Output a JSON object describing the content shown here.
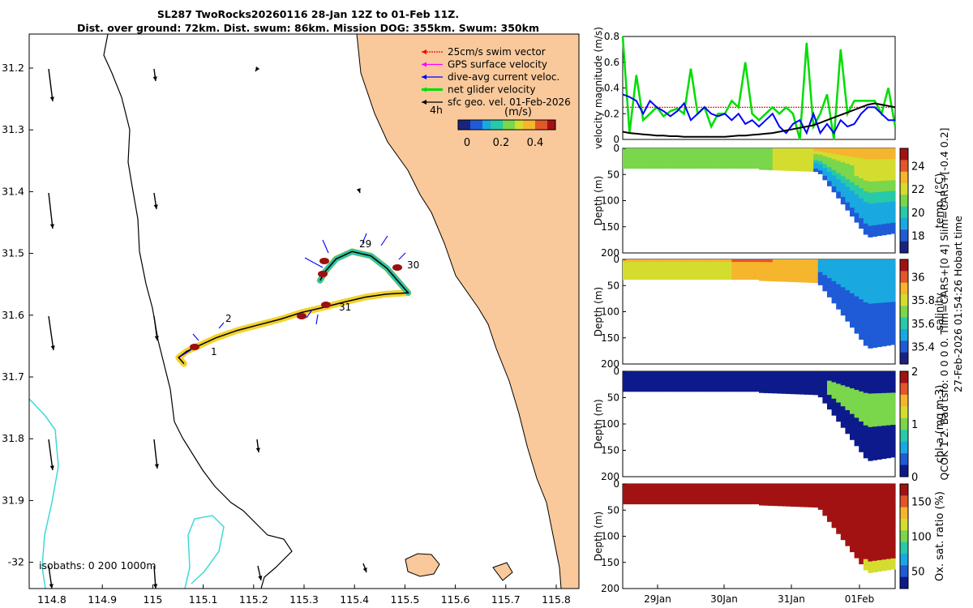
{
  "header": {
    "title_line1": "SL287 TwoRocks20260116 28-Jan 12Z to 01-Feb 11Z.",
    "title_line2": "Dist. over ground: 72km. Dist. swum: 86km. Mission DOG: 355km. Swum: 350km"
  },
  "side_text": {
    "line1": "27-Feb-2026 01:54:26 Hobart time",
    "line2": "QCOK 1  2. Bad tsfo: 0  0  0  0. Tlim=CARS+[0 4] Slim=CARS+[-0.4 0.2]"
  },
  "colors": {
    "land": "#f9c99b",
    "isobath_200": "#000000",
    "isobath_1000": "#3dd9d9",
    "track": "#000000"
  },
  "chart_data": [
    {
      "id": "map",
      "type": "scatter",
      "title": "Glider track map",
      "x_ticks": [
        "114.8",
        "114.9",
        "115",
        "115.1",
        "115.2",
        "115.3",
        "115.4",
        "115.5",
        "115.6",
        "115.7",
        "115.8"
      ],
      "y_ticks": [
        "31.2",
        "31.3",
        "31.4",
        "31.5",
        "31.6",
        "31.7",
        "31.8",
        "31.9",
        "-32"
      ],
      "xlim": [
        114.78,
        115.81
      ],
      "ylim": [
        -32.04,
        -31.14
      ],
      "legend": [
        {
          "label": "25cm/s swim vector",
          "color": "#ff0000"
        },
        {
          "label": "GPS surface velocity",
          "color": "#ff00ff"
        },
        {
          "label": "dive-avg current veloc.",
          "color": "#0000ff"
        },
        {
          "label": "net glider velocity",
          "color": "#00dd00"
        },
        {
          "label": "sfc geo. vel. 01-Feb-2026",
          "color": "#000000"
        }
      ],
      "legend_time": "4h",
      "colorbar_label": "(m/s)",
      "colorbar_ticks": [
        "0",
        "0.2",
        "0.4"
      ],
      "isobaths_label": "isobaths: 0   200  1000m",
      "day_labels": [
        "1",
        "2",
        "29",
        "30",
        "31"
      ],
      "track": [
        [
          115.07,
          -31.675
        ],
        [
          115.06,
          -31.665
        ],
        [
          115.075,
          -31.655
        ],
        [
          115.1,
          -31.645
        ],
        [
          115.13,
          -31.633
        ],
        [
          115.17,
          -31.621
        ],
        [
          115.21,
          -31.612
        ],
        [
          115.25,
          -31.603
        ],
        [
          115.29,
          -31.592
        ],
        [
          115.33,
          -31.584
        ],
        [
          115.37,
          -31.575
        ],
        [
          115.41,
          -31.567
        ],
        [
          115.45,
          -31.562
        ],
        [
          115.49,
          -31.56
        ],
        [
          115.475,
          -31.545
        ],
        [
          115.45,
          -31.52
        ],
        [
          115.42,
          -31.5
        ],
        [
          115.385,
          -31.493
        ],
        [
          115.355,
          -31.505
        ],
        [
          115.335,
          -31.525
        ],
        [
          115.325,
          -31.54
        ]
      ]
    },
    {
      "id": "velocity",
      "type": "line",
      "ylabel": "velocity magnitude (m/s)",
      "ylim": [
        0,
        0.8
      ],
      "y_ticks": [
        "0",
        "0.2",
        "0.4",
        "0.6",
        "0.8"
      ],
      "series": [
        {
          "name": "25cm/s swim vector",
          "color": "#ff0000",
          "values": [
            0.25,
            0.25,
            0.25,
            0.25,
            0.25,
            0.25,
            0.25,
            0.25,
            0.25,
            0.25,
            0.25,
            0.25,
            0.25,
            0.25,
            0.25,
            0.25,
            0.25,
            0.25,
            0.25,
            0.25,
            0.25,
            0.25,
            0.25,
            0.25,
            0.25,
            0.25,
            0.25,
            0.25,
            0.25,
            0.25,
            0.25,
            0.25,
            0.25,
            0.25,
            0.25,
            0.25,
            0.25,
            0.25,
            0.25,
            0.25,
            0.25
          ]
        },
        {
          "name": "net glider velocity",
          "color": "#00dd00",
          "values": [
            0.8,
            0.05,
            0.5,
            0.15,
            0.2,
            0.25,
            0.18,
            0.22,
            0.24,
            0.2,
            0.55,
            0.2,
            0.25,
            0.1,
            0.2,
            0.2,
            0.3,
            0.25,
            0.6,
            0.2,
            0.15,
            0.2,
            0.25,
            0.2,
            0.25,
            0.2,
            0.0,
            0.75,
            0.1,
            0.2,
            0.35,
            0.0,
            0.7,
            0.2,
            0.3,
            0.3,
            0.3,
            0.3,
            0.2,
            0.4,
            0.1
          ]
        },
        {
          "name": "dive-avg current veloc.",
          "color": "#0000ff",
          "values": [
            0.35,
            0.33,
            0.3,
            0.2,
            0.3,
            0.25,
            0.22,
            0.18,
            0.22,
            0.28,
            0.15,
            0.2,
            0.25,
            0.2,
            0.18,
            0.2,
            0.15,
            0.2,
            0.12,
            0.15,
            0.1,
            0.15,
            0.2,
            0.1,
            0.05,
            0.12,
            0.15,
            0.05,
            0.2,
            0.05,
            0.12,
            0.05,
            0.15,
            0.1,
            0.12,
            0.2,
            0.25,
            0.25,
            0.2,
            0.15,
            0.15
          ]
        },
        {
          "name": "sfc geo. vel.",
          "color": "#000000",
          "values": [
            0.06,
            0.05,
            0.045,
            0.04,
            0.035,
            0.03,
            0.03,
            0.025,
            0.025,
            0.02,
            0.02,
            0.02,
            0.02,
            0.02,
            0.02,
            0.02,
            0.025,
            0.03,
            0.03,
            0.035,
            0.04,
            0.045,
            0.05,
            0.06,
            0.07,
            0.08,
            0.09,
            0.1,
            0.11,
            0.13,
            0.15,
            0.17,
            0.19,
            0.21,
            0.23,
            0.25,
            0.27,
            0.28,
            0.27,
            0.26,
            0.25
          ]
        }
      ]
    },
    {
      "id": "temp",
      "type": "heatmap",
      "ylabel": "Depth (m)",
      "clabel": "temp. (°C)",
      "y_ticks": [
        "0",
        "50",
        "100",
        "150",
        "200"
      ],
      "ylim": [
        0,
        200
      ],
      "c_ticks": [
        "24",
        "22",
        "20",
        "18"
      ],
      "clim": [
        16.5,
        25.5
      ],
      "colormap": [
        "#1a237e",
        "#1f5bd6",
        "#1aa8e0",
        "#27c9a8",
        "#7ad64a",
        "#d4dd2f",
        "#f5b52c",
        "#e2562a",
        "#a31212"
      ],
      "surface_value": 21.5,
      "deep_value": 17
    },
    {
      "id": "salinity",
      "type": "heatmap",
      "ylabel": "Depth (m)",
      "clabel": "salinity",
      "y_ticks": [
        "0",
        "50",
        "100",
        "150",
        "200"
      ],
      "ylim": [
        0,
        200
      ],
      "c_ticks": [
        "36",
        "35.8",
        "35.6",
        "35.4"
      ],
      "clim": [
        35.25,
        36.15
      ],
      "colormap": [
        "#1a237e",
        "#1f5bd6",
        "#1aa8e0",
        "#27c9a8",
        "#7ad64a",
        "#d4dd2f",
        "#f5b52c",
        "#e2562a",
        "#a31212"
      ],
      "surface_value": 35.9,
      "deep_value": 35.5
    },
    {
      "id": "chla",
      "type": "heatmap",
      "ylabel": "Depth (m)",
      "clabel": "chl-a (mg m-3)",
      "y_ticks": [
        "0",
        "50",
        "100",
        "150",
        "200"
      ],
      "ylim": [
        0,
        200
      ],
      "c_ticks": [
        "2",
        "1",
        "0"
      ],
      "clim": [
        0,
        2
      ],
      "colormap": [
        "#0d1a8c",
        "#1f5bd6",
        "#1aa8e0",
        "#27c9a8",
        "#7ad64a",
        "#d4dd2f",
        "#f5b52c",
        "#e2562a",
        "#a31212"
      ],
      "surface_value": 0.1,
      "deep_value": 0.05
    },
    {
      "id": "oxygen",
      "type": "heatmap",
      "ylabel": "Depth (m)",
      "clabel": "Ox. sat. ratio (%)",
      "y_ticks": [
        "0",
        "50",
        "100",
        "150",
        "200"
      ],
      "ylim": [
        0,
        200
      ],
      "c_ticks": [
        "150",
        "100",
        "50"
      ],
      "clim": [
        25,
        175
      ],
      "colormap": [
        "#0d1a8c",
        "#1f5bd6",
        "#1aa8e0",
        "#27c9a8",
        "#7ad64a",
        "#d4dd2f",
        "#f5b52c",
        "#e2562a",
        "#a31212"
      ],
      "surface_value": 170,
      "deep_value": 170,
      "x_ticks": [
        "29Jan",
        "30Jan",
        "31Jan",
        "01Feb"
      ]
    }
  ]
}
